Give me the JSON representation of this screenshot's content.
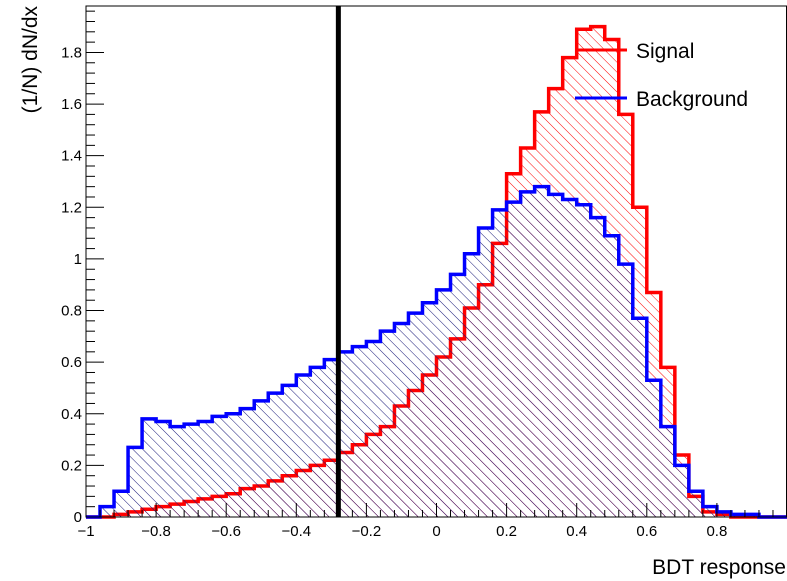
{
  "chart_data": {
    "type": "histogram",
    "xlabel": "BDT response",
    "ylabel": "(1/N) dN/dx",
    "xlim": [
      -1,
      1
    ],
    "ylim": [
      0,
      1.98
    ],
    "bin_width": 0.04,
    "x_ticks": [
      -1,
      -0.8,
      -0.6,
      -0.4,
      -0.2,
      0,
      0.2,
      0.4,
      0.6,
      0.8
    ],
    "x_tick_labels": [
      "−1",
      "−0.8",
      "−0.6",
      "−0.4",
      "−0.2",
      "0",
      "0.2",
      "0.4",
      "0.6",
      "0.8"
    ],
    "y_ticks": [
      0,
      0.2,
      0.4,
      0.6,
      0.8,
      1,
      1.2,
      1.4,
      1.6,
      1.8
    ],
    "y_tick_labels": [
      "0",
      "0.2",
      "0.4",
      "0.6",
      "0.8",
      "1",
      "1.2",
      "1.4",
      "1.6",
      "1.8"
    ],
    "cut_line_x": -0.28,
    "legend_position": "top-right",
    "grid": false,
    "series": [
      {
        "name": "Signal",
        "color": "#ff0000",
        "hatch": "diagonal",
        "values": [
          0,
          0,
          0.01,
          0.02,
          0.03,
          0.04,
          0.05,
          0.06,
          0.07,
          0.08,
          0.09,
          0.11,
          0.12,
          0.14,
          0.16,
          0.18,
          0.2,
          0.22,
          0.25,
          0.28,
          0.32,
          0.35,
          0.43,
          0.49,
          0.55,
          0.62,
          0.69,
          0.81,
          0.9,
          1.06,
          1.33,
          1.43,
          1.57,
          1.66,
          1.78,
          1.89,
          1.9,
          1.85,
          1.56,
          1.2,
          0.87,
          0.58,
          0.24,
          0.08,
          0.02,
          0.01,
          0,
          0,
          0,
          0
        ]
      },
      {
        "name": "Background",
        "color": "#0000ff",
        "hatch": "diagonal",
        "values": [
          0,
          0.04,
          0.1,
          0.27,
          0.38,
          0.37,
          0.35,
          0.36,
          0.37,
          0.39,
          0.4,
          0.42,
          0.45,
          0.48,
          0.51,
          0.55,
          0.58,
          0.61,
          0.64,
          0.66,
          0.68,
          0.72,
          0.75,
          0.79,
          0.83,
          0.88,
          0.94,
          1.02,
          1.12,
          1.19,
          1.22,
          1.26,
          1.28,
          1.25,
          1.23,
          1.21,
          1.16,
          1.09,
          0.98,
          0.77,
          0.53,
          0.35,
          0.2,
          0.1,
          0.04,
          0.02,
          0.01,
          0.01,
          0,
          0
        ]
      }
    ]
  }
}
